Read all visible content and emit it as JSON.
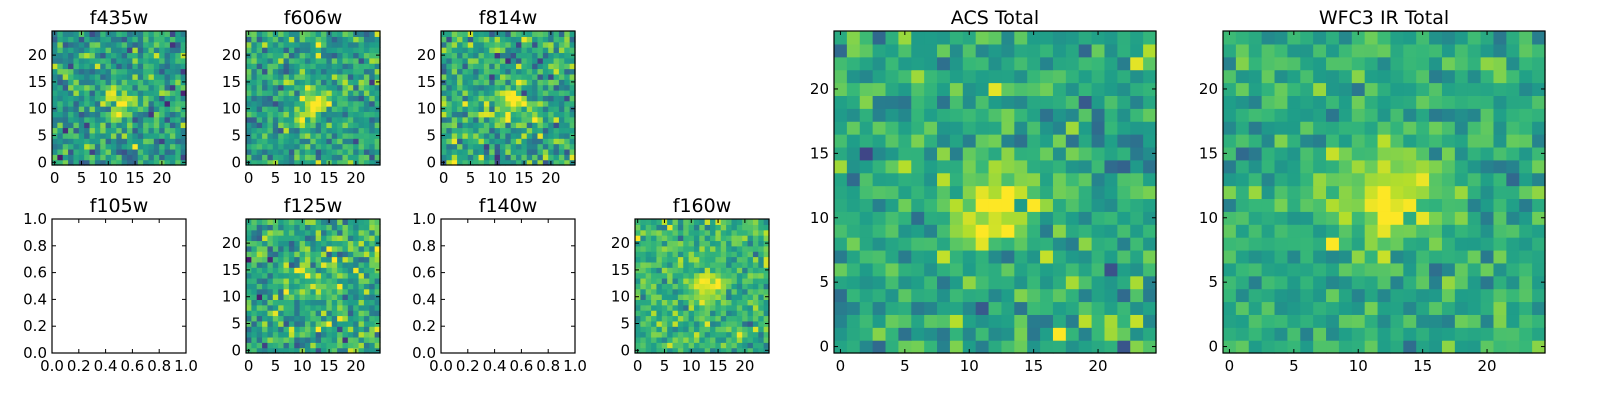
{
  "figure": {
    "colormap": "viridis"
  },
  "chart_data": [
    {
      "panel": "f435w",
      "type": "heatmap",
      "title": "f435w",
      "grid_size": 25,
      "xlim": [
        -0.5,
        24.5
      ],
      "ylim": [
        -0.5,
        24.5
      ],
      "xticks": [
        0,
        5,
        10,
        15,
        20
      ],
      "yticks": [
        0,
        5,
        10,
        15,
        20
      ],
      "empty": false,
      "seed": 435,
      "noise_mean": 0.55,
      "noise_sd": 0.15,
      "peak_center": [
        12,
        11
      ],
      "peak_height": 0.35,
      "peak_width": 2.2
    },
    {
      "panel": "f606w",
      "type": "heatmap",
      "title": "f606w",
      "grid_size": 25,
      "xlim": [
        -0.5,
        24.5
      ],
      "ylim": [
        -0.5,
        24.5
      ],
      "xticks": [
        0,
        5,
        10,
        15,
        20
      ],
      "yticks": [
        0,
        5,
        10,
        15,
        20
      ],
      "empty": false,
      "seed": 606,
      "noise_mean": 0.58,
      "noise_sd": 0.15,
      "peak_center": [
        12,
        11
      ],
      "peak_height": 0.4,
      "peak_width": 2.0
    },
    {
      "panel": "f814w",
      "type": "heatmap",
      "title": "f814w",
      "grid_size": 25,
      "xlim": [
        -0.5,
        24.5
      ],
      "ylim": [
        -0.5,
        24.5
      ],
      "xticks": [
        0,
        5,
        10,
        15,
        20
      ],
      "yticks": [
        0,
        5,
        10,
        15,
        20
      ],
      "empty": false,
      "seed": 814,
      "noise_mean": 0.6,
      "noise_sd": 0.16,
      "peak_center": [
        12,
        11
      ],
      "peak_height": 0.3,
      "peak_width": 2.4
    },
    {
      "panel": "f105w",
      "type": "heatmap",
      "title": "f105w",
      "empty": true,
      "xlim": [
        0,
        1
      ],
      "ylim": [
        0,
        1
      ],
      "xticks": [
        "0.0",
        "0.2",
        "0.4",
        "0.6",
        "0.8",
        "1.0"
      ],
      "yticks": [
        "0.0",
        "0.2",
        "0.4",
        "0.6",
        "0.8",
        "1.0"
      ]
    },
    {
      "panel": "f125w",
      "type": "heatmap",
      "title": "f125w",
      "grid_size": 25,
      "xlim": [
        -0.5,
        24.5
      ],
      "ylim": [
        -0.5,
        24.5
      ],
      "xticks": [
        0,
        5,
        10,
        15,
        20
      ],
      "yticks": [
        0,
        5,
        10,
        15,
        20
      ],
      "empty": false,
      "seed": 125,
      "noise_mean": 0.6,
      "noise_sd": 0.17,
      "peak_center": [
        12,
        12
      ],
      "peak_height": 0.2,
      "peak_width": 3.0
    },
    {
      "panel": "f140w",
      "type": "heatmap",
      "title": "f140w",
      "empty": true,
      "xlim": [
        0,
        1
      ],
      "ylim": [
        0,
        1
      ],
      "xticks": [
        "0.0",
        "0.2",
        "0.4",
        "0.6",
        "0.8",
        "1.0"
      ],
      "yticks": [
        "0.0",
        "0.2",
        "0.4",
        "0.6",
        "0.8",
        "1.0"
      ]
    },
    {
      "panel": "f160w",
      "type": "heatmap",
      "title": "f160w",
      "grid_size": 25,
      "xlim": [
        -0.5,
        24.5
      ],
      "ylim": [
        -0.5,
        24.5
      ],
      "xticks": [
        0,
        5,
        10,
        15,
        20
      ],
      "yticks": [
        0,
        5,
        10,
        15,
        20
      ],
      "empty": false,
      "seed": 160,
      "noise_mean": 0.65,
      "noise_sd": 0.11,
      "peak_center": [
        13,
        12
      ],
      "peak_height": 0.35,
      "peak_width": 2.2
    },
    {
      "panel": "acs-total",
      "type": "heatmap",
      "title": "ACS Total",
      "grid_size": 25,
      "xlim": [
        -0.5,
        24.5
      ],
      "ylim": [
        -0.5,
        24.5
      ],
      "xticks": [
        0,
        5,
        10,
        15,
        20
      ],
      "yticks": [
        0,
        5,
        10,
        15,
        20
      ],
      "empty": false,
      "seed": 999,
      "noise_mean": 0.6,
      "noise_sd": 0.12,
      "peak_center": [
        12,
        11
      ],
      "peak_height": 0.4,
      "peak_width": 2.2
    },
    {
      "panel": "wfc3-ir-total",
      "type": "heatmap",
      "title": "WFC3 IR Total",
      "grid_size": 25,
      "xlim": [
        -0.5,
        24.5
      ],
      "ylim": [
        -0.5,
        24.5
      ],
      "xticks": [
        0,
        5,
        10,
        15,
        20
      ],
      "yticks": [
        0,
        5,
        10,
        15,
        20
      ],
      "empty": false,
      "seed": 777,
      "noise_mean": 0.62,
      "noise_sd": 0.1,
      "peak_center": [
        12,
        12
      ],
      "peak_height": 0.35,
      "peak_width": 2.6
    }
  ]
}
